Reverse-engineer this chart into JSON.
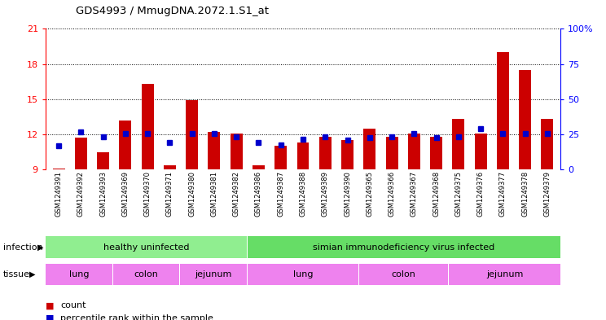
{
  "title": "GDS4993 / MmugDNA.2072.1.S1_at",
  "samples": [
    "GSM1249391",
    "GSM1249392",
    "GSM1249393",
    "GSM1249369",
    "GSM1249370",
    "GSM1249371",
    "GSM1249380",
    "GSM1249381",
    "GSM1249382",
    "GSM1249386",
    "GSM1249387",
    "GSM1249388",
    "GSM1249389",
    "GSM1249390",
    "GSM1249365",
    "GSM1249366",
    "GSM1249367",
    "GSM1249368",
    "GSM1249375",
    "GSM1249376",
    "GSM1249377",
    "GSM1249378",
    "GSM1249379"
  ],
  "count_values": [
    9.1,
    11.7,
    10.5,
    13.2,
    16.3,
    9.4,
    14.9,
    12.2,
    12.1,
    9.4,
    11.0,
    11.3,
    11.8,
    11.5,
    12.5,
    11.8,
    12.1,
    11.8,
    13.3,
    12.1,
    19.0,
    17.5,
    13.3
  ],
  "percentile_values": [
    11.0,
    12.2,
    11.8,
    12.1,
    12.1,
    11.3,
    12.1,
    12.1,
    11.8,
    11.3,
    11.1,
    11.6,
    11.8,
    11.5,
    11.7,
    11.8,
    12.1,
    11.7,
    11.8,
    12.5,
    12.1,
    12.1,
    12.1
  ],
  "ylim": [
    9,
    21
  ],
  "yticks_left": [
    9,
    12,
    15,
    18,
    21
  ],
  "yticks_right": [
    0,
    25,
    50,
    75,
    100
  ],
  "bar_color": "#cc0000",
  "dot_color": "#0000cc",
  "plot_bg": "#ffffff",
  "label_bg": "#d8d8d8",
  "infection_groups": [
    {
      "label": "healthy uninfected",
      "start": 0,
      "end": 9,
      "color": "#90ee90"
    },
    {
      "label": "simian immunodeficiency virus infected",
      "start": 9,
      "end": 23,
      "color": "#66dd66"
    }
  ],
  "tissue_groups": [
    {
      "label": "lung",
      "start": 0,
      "end": 3,
      "color": "#ee82ee"
    },
    {
      "label": "colon",
      "start": 3,
      "end": 6,
      "color": "#ee82ee"
    },
    {
      "label": "jejunum",
      "start": 6,
      "end": 9,
      "color": "#ee82ee"
    },
    {
      "label": "lung",
      "start": 9,
      "end": 14,
      "color": "#ee82ee"
    },
    {
      "label": "colon",
      "start": 14,
      "end": 18,
      "color": "#ee82ee"
    },
    {
      "label": "jejunum",
      "start": 18,
      "end": 23,
      "color": "#ee82ee"
    }
  ]
}
